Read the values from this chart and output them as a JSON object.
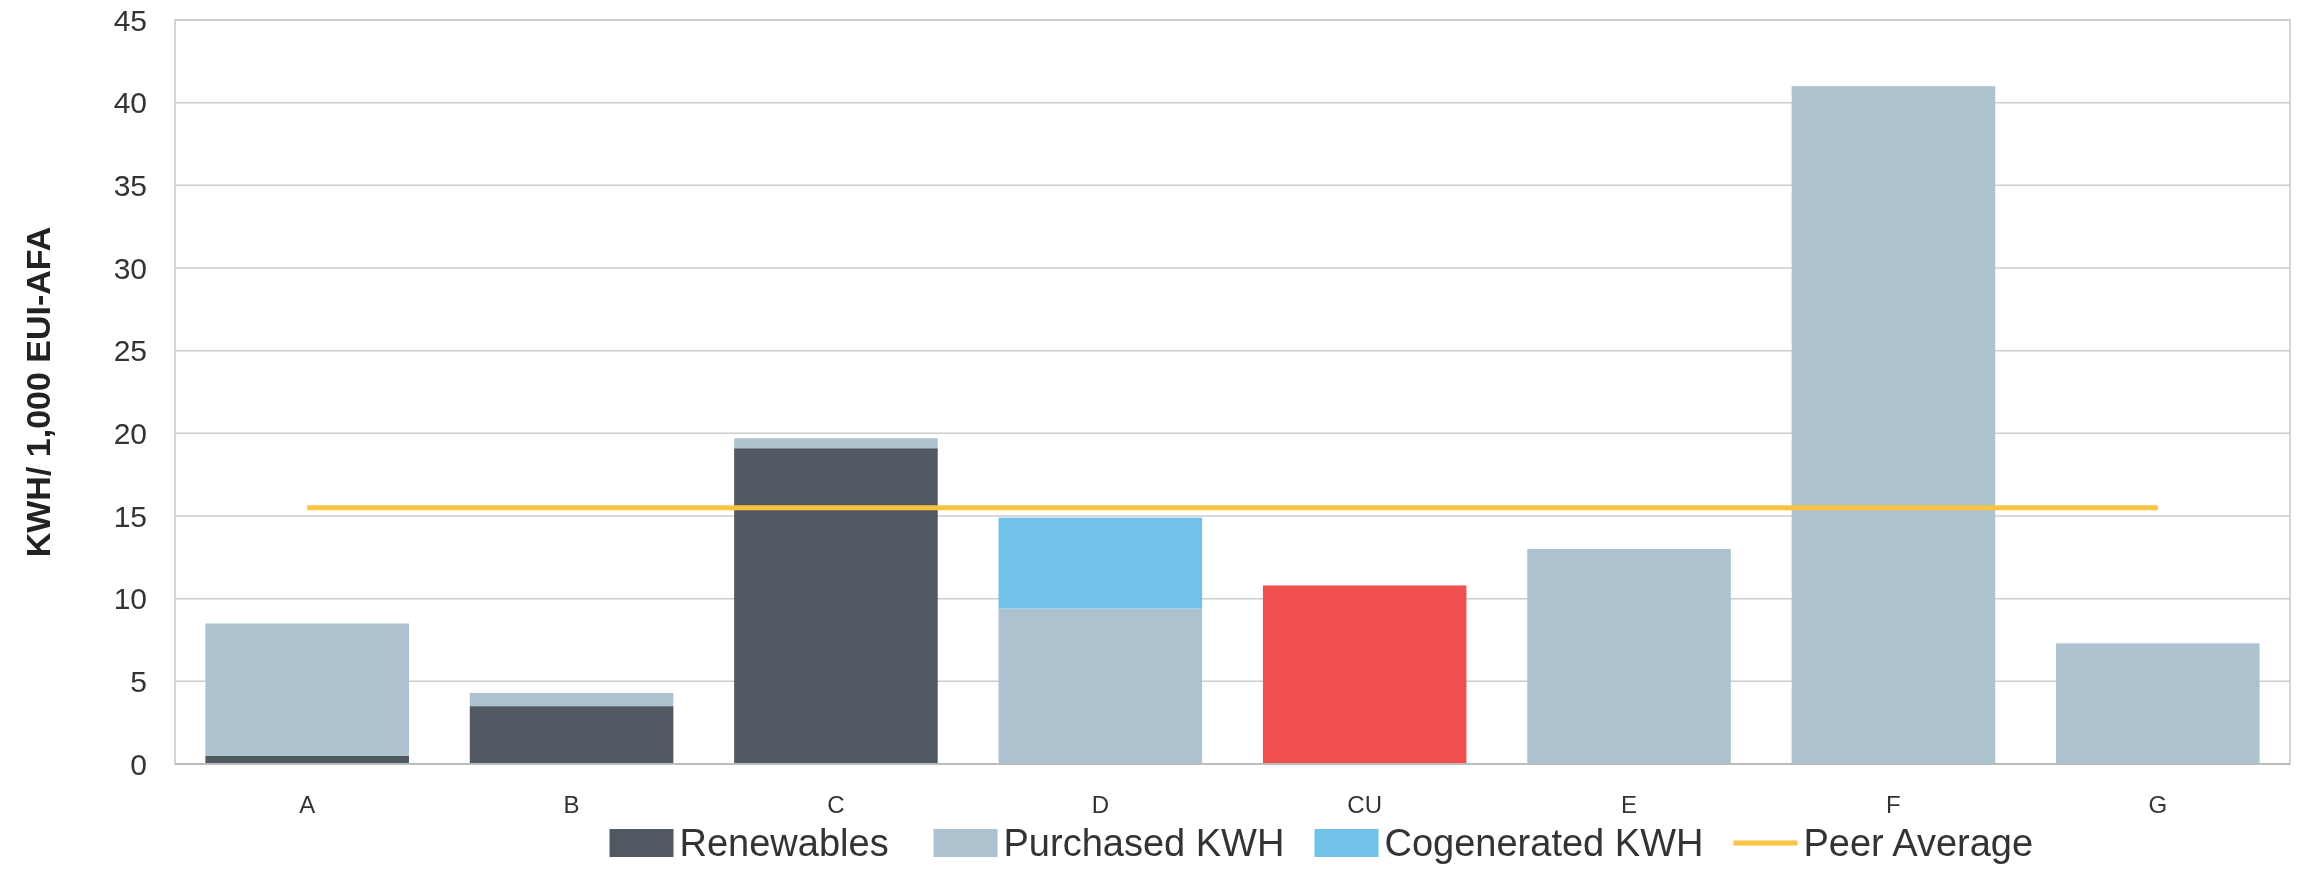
{
  "chart_data": {
    "type": "bar",
    "ylabel": "KWH/ 1,000 EUI-AFA",
    "categories": [
      "A",
      "B",
      "C",
      "D",
      "CU",
      "E",
      "F",
      "G"
    ],
    "stacked": true,
    "series": [
      {
        "name": "Renewables",
        "color": "#505862",
        "values": [
          0.5,
          3.5,
          19.1,
          null,
          null,
          null,
          null,
          null
        ]
      },
      {
        "name": "Purchased KWH",
        "color": "#acc2ce",
        "colors": [
          "#acc2ce",
          "#acc2ce",
          "#acc2ce",
          "#acc2ce",
          "#f05050",
          "#acc2ce",
          "#acc2ce",
          "#acc2ce"
        ],
        "values": [
          8.0,
          0.8,
          0.6,
          9.4,
          10.8,
          13.0,
          41.0,
          7.3
        ]
      },
      {
        "name": "Cogenerated KWH",
        "color": "#72c1e8",
        "values": [
          null,
          null,
          null,
          5.5,
          null,
          null,
          null,
          null
        ]
      },
      {
        "name": "Peer Average",
        "type": "line",
        "color": "#fbc440",
        "values": [
          15.5,
          15.5,
          15.5,
          15.5,
          15.5,
          15.5,
          15.5,
          15.5
        ]
      }
    ],
    "ylim": [
      0,
      45
    ],
    "yticks": [
      0,
      5,
      10,
      15,
      20,
      25,
      30,
      35,
      40,
      45
    ],
    "grid": "y",
    "legend": "bottom"
  }
}
